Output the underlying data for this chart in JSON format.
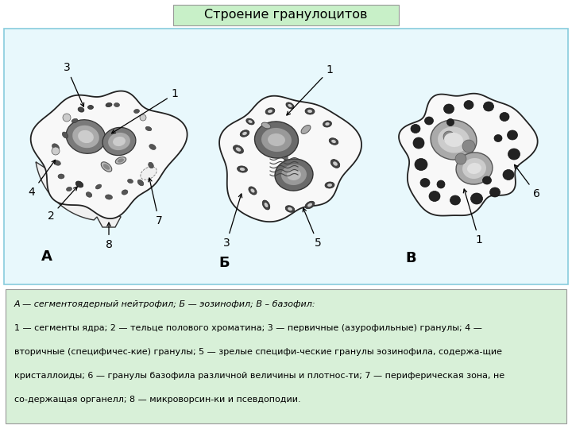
{
  "title": "Строение гранулоцитов",
  "title_bg": "#c8f0c8",
  "title_border": "#aaaaaa",
  "panel_bg": "#e8f8fc",
  "panel_border": "#88ccdd",
  "caption_bg": "#d8f0d8",
  "caption_border": "#999999",
  "outer_bg": "#ffffff",
  "caption_line1": "А — сегментоядерный нейтрофил; Б — эозинофил; В – базофил:",
  "caption_line2": "1 — сегменты ядра; 2 — тельце полового хроматина; 3 — первичные (азурофильные) гранулы; 4 —",
  "caption_line3": "вторичные (специфичес-кие) гранулы; 5 — зрелые специфи-ческие гранулы эозинофила, содержа-щие",
  "caption_line4": "кристаллоиды; 6 — гранулы базофила различной величины и плотнос-ти; 7 — периферическая зона, не",
  "caption_line5": "со-держащая органелл; 8 — микроворсин-ки и псевдоподии.",
  "label_A": "А",
  "label_B": "Б",
  "label_V": "В"
}
